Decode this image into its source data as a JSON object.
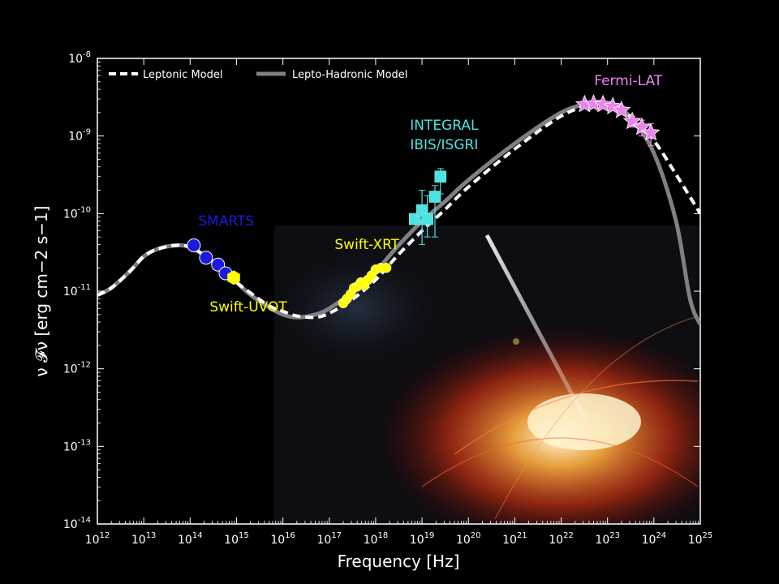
{
  "chart_data": {
    "type": "scatter",
    "xlabel": "Frequency [Hz]",
    "ylabel": "ν 𝓕ν [erg cm−2 s−1]",
    "x_scale": "log",
    "y_scale": "log",
    "xlim": [
      1000000000000.0,
      1e+25
    ],
    "ylim": [
      1e-14,
      1e-08
    ],
    "x_ticks": [
      {
        "base": "10",
        "exp": "12",
        "value": 1000000000000.0
      },
      {
        "base": "10",
        "exp": "13",
        "value": 10000000000000.0
      },
      {
        "base": "10",
        "exp": "14",
        "value": 100000000000000.0
      },
      {
        "base": "10",
        "exp": "15",
        "value": 1000000000000000.0
      },
      {
        "base": "10",
        "exp": "16",
        "value": 1e+16
      },
      {
        "base": "10",
        "exp": "17",
        "value": 1e+17
      },
      {
        "base": "10",
        "exp": "18",
        "value": 1e+18
      },
      {
        "base": "10",
        "exp": "19",
        "value": 1e+19
      },
      {
        "base": "10",
        "exp": "20",
        "value": 1e+20
      },
      {
        "base": "10",
        "exp": "21",
        "value": 1e+21
      },
      {
        "base": "10",
        "exp": "22",
        "value": 1e+22
      },
      {
        "base": "10",
        "exp": "23",
        "value": 1e+23
      },
      {
        "base": "10",
        "exp": "24",
        "value": 1e+24
      },
      {
        "base": "10",
        "exp": "25",
        "value": 1e+25
      }
    ],
    "y_ticks": [
      {
        "base": "10",
        "exp": "-8",
        "value": 1e-08
      },
      {
        "base": "10",
        "exp": "-9",
        "value": 1e-09
      },
      {
        "base": "10",
        "exp": "-10",
        "value": 1e-10
      },
      {
        "base": "10",
        "exp": "-11",
        "value": 1e-11
      },
      {
        "base": "10",
        "exp": "-12",
        "value": 1e-12
      },
      {
        "base": "10",
        "exp": "-13",
        "value": 1e-13
      },
      {
        "base": "10",
        "exp": "-14",
        "value": 1e-14
      }
    ],
    "legend_position": "top-left",
    "legend": [
      {
        "label": "Leptonic Model",
        "style": "dashed",
        "color": "#ffffff"
      },
      {
        "label": "Lepto-Hadronic Model",
        "style": "solid",
        "color": "#808080"
      }
    ],
    "models": [
      {
        "name": "Leptonic Model",
        "style": "dashed",
        "color": "#ffffff",
        "points": [
          [
            1000000000000.0,
            8.9e-12
          ],
          [
            2000000000000.0,
            1.1e-11
          ],
          [
            5000000000000.0,
            1.8e-11
          ],
          [
            10000000000000.0,
            2.8e-11
          ],
          [
            20000000000000.0,
            3.5e-11
          ],
          [
            50000000000000.0,
            3.9e-11
          ],
          [
            100000000000000.0,
            3.7e-11
          ],
          [
            200000000000000.0,
            2.9e-11
          ],
          [
            500000000000000.0,
            1.9e-11
          ],
          [
            1000000000000000.0,
            1.3e-11
          ],
          [
            2000000000000000.0,
            9.5e-12
          ],
          [
            5000000000000000.0,
            6.5e-12
          ],
          [
            1e+16,
            5.5e-12
          ],
          [
            2e+16,
            4.8e-12
          ],
          [
            5e+16,
            4.6e-12
          ],
          [
            1e+17,
            5.2e-12
          ],
          [
            3e+17,
            7.7e-12
          ],
          [
            1e+18,
            1.4e-11
          ],
          [
            3e+18,
            2.9e-11
          ],
          [
            1e+19,
            6e-11
          ],
          [
            3e+19,
            1.1e-10
          ],
          [
            1e+20,
            2.2e-10
          ],
          [
            1e+21,
            6.8e-10
          ],
          [
            1e+22,
            1.8e-09
          ],
          [
            5e+22,
            2.6e-09
          ],
          [
            1e+23,
            2.5e-09
          ],
          [
            3e+23,
            1.8e-09
          ],
          [
            1e+24,
            8.7e-10
          ],
          [
            3e+24,
            3.2e-10
          ],
          [
            1e+25,
            1e-10
          ]
        ]
      },
      {
        "name": "Lepto-Hadronic Model",
        "style": "solid",
        "color": "#808080",
        "points": [
          [
            1000000000000.0,
            8.9e-12
          ],
          [
            2000000000000.0,
            1.1e-11
          ],
          [
            5000000000000.0,
            1.8e-11
          ],
          [
            10000000000000.0,
            2.8e-11
          ],
          [
            20000000000000.0,
            3.5e-11
          ],
          [
            50000000000000.0,
            3.9e-11
          ],
          [
            100000000000000.0,
            3.7e-11
          ],
          [
            200000000000000.0,
            2.9e-11
          ],
          [
            500000000000000.0,
            1.9e-11
          ],
          [
            1000000000000000.0,
            1.3e-11
          ],
          [
            2000000000000000.0,
            9e-12
          ],
          [
            5000000000000000.0,
            6.2e-12
          ],
          [
            1e+16,
            5e-12
          ],
          [
            2e+16,
            4.6e-12
          ],
          [
            5e+16,
            5e-12
          ],
          [
            1e+17,
            6e-12
          ],
          [
            3e+17,
            9.5e-12
          ],
          [
            1e+18,
            1.8e-11
          ],
          [
            3e+18,
            3.8e-11
          ],
          [
            1e+19,
            8e-11
          ],
          [
            3e+19,
            1.4e-10
          ],
          [
            1e+20,
            2.7e-10
          ],
          [
            1e+21,
            8e-10
          ],
          [
            1e+22,
            2e-09
          ],
          [
            5e+22,
            2.7e-09
          ],
          [
            1e+23,
            2.6e-09
          ],
          [
            3e+23,
            1.8e-09
          ],
          [
            1e+24,
            6e-10
          ],
          [
            3e+24,
            8e-11
          ],
          [
            6e+24,
            8e-12
          ],
          [
            1e+25,
            3.7e-12
          ]
        ]
      }
    ],
    "series": [
      {
        "name": "SMARTS",
        "marker": "circle",
        "color": "#1a1adf",
        "x": [
          120000000000000.0,
          220000000000000.0,
          400000000000000.0,
          580000000000000.0
        ],
        "y": [
          3.9e-11,
          2.7e-11,
          2.2e-11,
          1.7e-11
        ]
      },
      {
        "name": "Swift-UVOT",
        "marker": "hexagon",
        "color": "#ffff00",
        "x": [
          870000000000000.0
        ],
        "y": [
          1.5e-11
        ]
      },
      {
        "name": "Swift-XRT",
        "marker": "circle",
        "color": "#ffff00",
        "x": [
          2e+17,
          2.4e+17,
          2.9e+17,
          3.4e+17,
          4e+17,
          4.8e+17,
          5.7e+17,
          6.8e+17,
          8.2e+17,
          1e+18,
          1.3e+18,
          1.7e+18
        ],
        "y": [
          7e-12,
          8e-12,
          9.2e-12,
          1.1e-11,
          1.15e-11,
          1.3e-11,
          1.2e-11,
          1.4e-11,
          1.6e-11,
          1.9e-11,
          2e-11,
          2e-11
        ],
        "y_err": [
          0,
          0,
          0,
          0,
          0,
          0,
          0,
          0,
          0,
          0,
          0,
          0
        ]
      },
      {
        "name": "INTEGRAL IBIS/ISGRI",
        "marker": "square",
        "color": "#4de3e3",
        "x": [
          7e+18,
          1e+19,
          1.3e+19,
          1.9e+19,
          2.5e+19
        ],
        "y": [
          8.5e-11,
          1.1e-10,
          8.5e-11,
          1.65e-10,
          3e-10
        ],
        "y_lo": [
          7.5e-11,
          4e-11,
          5e-11,
          5e-11,
          1.8e-10
        ],
        "y_hi": [
          9.5e-11,
          2e-10,
          1.7e-10,
          2.3e-10,
          3.8e-10
        ]
      },
      {
        "name": "Fermi-LAT",
        "marker": "star",
        "color": "#ee82ee",
        "x": [
          3.2e+22,
          5e+22,
          8e+22,
          1.3e+23,
          2e+23,
          3.4e+23,
          5.5e+23,
          8.6e+23
        ],
        "y": [
          2.55e-09,
          2.6e-09,
          2.55e-09,
          2.4e-09,
          2.15e-09,
          1.55e-09,
          1.3e-09,
          1.1e-09
        ],
        "y_lo": [
          2.4e-09,
          2.45e-09,
          2.4e-09,
          2.2e-09,
          1.9e-09,
          1.3e-09,
          1e-09,
          7.5e-10
        ],
        "y_hi": [
          2.7e-09,
          2.75e-09,
          2.7e-09,
          2.6e-09,
          2.4e-09,
          1.8e-09,
          1.6e-09,
          1.45e-09
        ]
      }
    ],
    "annotations": [
      {
        "lines": [
          "SMARTS"
        ],
        "color": "#1a1adf",
        "x": 600000000000000.0,
        "y": 7e-11
      },
      {
        "lines": [
          "Swift-UVOT"
        ],
        "color": "#ffff00",
        "x": 1800000000000000.0,
        "y": 5.5e-12
      },
      {
        "lines": [
          "Swift-XRT"
        ],
        "color": "#ffff00",
        "x": 6.5e+17,
        "y": 3.5e-11
      },
      {
        "lines": [
          "INTEGRAL",
          "IBIS/ISGRI"
        ],
        "color": "#4de3e3",
        "x": 3e+19,
        "y": 1.2e-09
      },
      {
        "lines": [
          "Fermi-LAT"
        ],
        "color": "#ee82ee",
        "x": 2.8e+23,
        "y": 4.5e-09
      }
    ]
  }
}
